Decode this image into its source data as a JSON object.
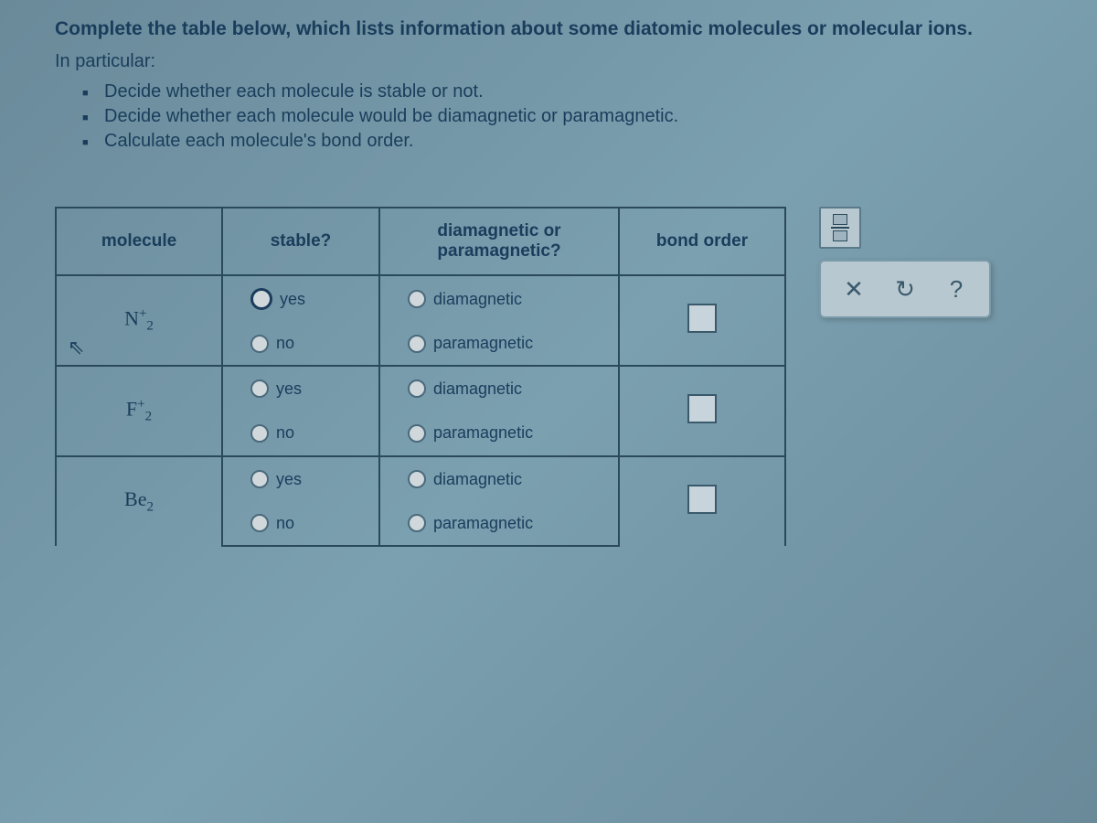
{
  "intro": {
    "line1": "Complete the table below, which lists information about some diatomic molecules or molecular ions.",
    "line2": "In particular:",
    "bullets": [
      "Decide whether each molecule is stable or not.",
      "Decide whether each molecule would be diamagnetic or paramagnetic.",
      "Calculate each molecule's bond order."
    ]
  },
  "headers": {
    "molecule": "molecule",
    "stable": "stable?",
    "magnetic": "diamagnetic or paramagnetic?",
    "bond": "bond order"
  },
  "options": {
    "yes": "yes",
    "no": "no",
    "dia": "diamagnetic",
    "para": "paramagnetic"
  },
  "molecules": {
    "row1": {
      "base": "N",
      "sub": "2",
      "sup": "+"
    },
    "row2": {
      "base": "F",
      "sub": "2",
      "sup": "+"
    },
    "row3": {
      "base": "Be",
      "sub": "2",
      "sup": ""
    }
  },
  "tools": {
    "close": "✕",
    "redo": "↻",
    "help": "?"
  },
  "colors": {
    "text": "#1a3d5c",
    "border": "#2a4a5c",
    "bg_light": "#c8d4db"
  }
}
